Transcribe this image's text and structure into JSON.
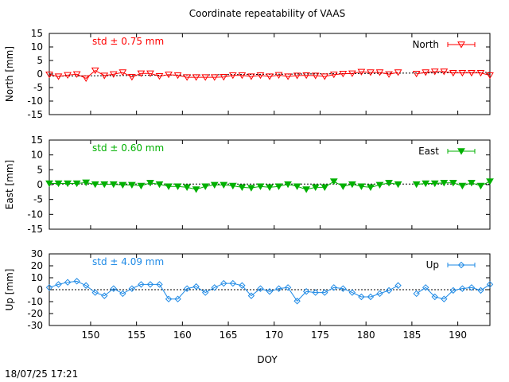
{
  "title": "Coordinate repeatability of VAAS",
  "x_label": "DOY",
  "timestamp": "18/07/25 17:21",
  "chart_data": [
    {
      "type": "line",
      "panel": "north",
      "title": "Coordinate repeatability of VAAS",
      "xlabel": "DOY",
      "ylabel": "North [mm]",
      "xlim": [
        145.5,
        193.5
      ],
      "ylim": [
        -15,
        15
      ],
      "x_ticks": [
        150,
        155,
        160,
        165,
        170,
        175,
        180,
        185,
        190
      ],
      "y_ticks": [
        15,
        10,
        5,
        0,
        -5,
        -10,
        -15
      ],
      "grid": false,
      "legend_position": "top-right",
      "std_text": "std ± 0.75 mm",
      "color": "#ff0000",
      "marker": "open-triangle-down",
      "series": [
        {
          "name": "North",
          "x": [
            145.5,
            146.5,
            147.5,
            148.5,
            149.5,
            150.5,
            151.5,
            152.5,
            153.5,
            154.5,
            155.5,
            156.5,
            157.5,
            158.5,
            159.5,
            160.5,
            161.5,
            162.5,
            163.5,
            164.5,
            165.5,
            166.5,
            167.5,
            168.5,
            169.5,
            170.5,
            171.5,
            172.5,
            173.5,
            174.5,
            175.5,
            176.5,
            177.5,
            178.5,
            179.5,
            180.5,
            181.5,
            182.5,
            183.5,
            184.5,
            185.5,
            186.5,
            187.5,
            188.5,
            189.5,
            190.5,
            191.5,
            192.5,
            193.5
          ],
          "y": [
            -0.2,
            -0.9,
            -0.4,
            -0.1,
            -1.6,
            1.3,
            -0.6,
            -0.1,
            0.6,
            -1.1,
            0.2,
            0.2,
            -0.8,
            -0.2,
            -0.5,
            -1.2,
            -1.2,
            -1.2,
            -1.2,
            -1.1,
            -0.5,
            -0.5,
            -0.9,
            -0.5,
            -0.9,
            -0.4,
            -0.9,
            -0.6,
            -0.5,
            -0.6,
            -0.9,
            -0.2,
            0.1,
            0.2,
            0.8,
            0.6,
            0.6,
            -0.1,
            0.6,
            null,
            0.1,
            0.6,
            0.9,
            0.9,
            0.4,
            0.4,
            0.4,
            0.4,
            -0.5
          ]
        }
      ],
      "fit_line": {
        "x": [
          145.5,
          193.5
        ],
        "y": [
          -0.8,
          0.6
        ]
      }
    },
    {
      "type": "line",
      "panel": "east",
      "xlabel": "DOY",
      "ylabel": "East [mm]",
      "xlim": [
        145.5,
        193.5
      ],
      "ylim": [
        -15,
        15
      ],
      "x_ticks": [
        150,
        155,
        160,
        165,
        170,
        175,
        180,
        185,
        190
      ],
      "y_ticks": [
        15,
        10,
        5,
        0,
        -5,
        -10,
        -15
      ],
      "grid": false,
      "legend_position": "top-right",
      "std_text": "std ± 0.60 mm",
      "color": "#00b000",
      "marker": "filled-triangle-down",
      "series": [
        {
          "name": "East",
          "x": [
            145.5,
            146.5,
            147.5,
            148.5,
            149.5,
            150.5,
            151.5,
            152.5,
            153.5,
            154.5,
            155.5,
            156.5,
            157.5,
            158.5,
            159.5,
            160.5,
            161.5,
            162.5,
            163.5,
            164.5,
            165.5,
            166.5,
            167.5,
            168.5,
            169.5,
            170.5,
            171.5,
            172.5,
            173.5,
            174.5,
            175.5,
            176.5,
            177.5,
            178.5,
            179.5,
            180.5,
            181.5,
            182.5,
            183.5,
            184.5,
            185.5,
            186.5,
            187.5,
            188.5,
            189.5,
            190.5,
            191.5,
            192.5,
            193.5
          ],
          "y": [
            0.4,
            0.4,
            0.4,
            0.4,
            0.7,
            0.1,
            0.1,
            0.1,
            -0.1,
            -0.1,
            -0.4,
            0.6,
            0.1,
            -0.6,
            -0.6,
            -0.9,
            -1.6,
            -0.6,
            -0.1,
            -0.1,
            -0.4,
            -0.9,
            -1.1,
            -0.6,
            -0.9,
            -0.6,
            0.1,
            -0.6,
            -1.6,
            -0.9,
            -0.9,
            1.1,
            -0.6,
            0.1,
            -0.6,
            -0.9,
            -0.1,
            0.6,
            0.1,
            null,
            0.1,
            0.4,
            0.4,
            0.6,
            0.6,
            -0.4,
            0.6,
            -0.4,
            1.1
          ]
        }
      ],
      "fit_line": {
        "x": [
          145.5,
          193.5
        ],
        "y": [
          0.2,
          0.2
        ]
      }
    },
    {
      "type": "line",
      "panel": "up",
      "xlabel": "DOY",
      "ylabel": "Up [mm]",
      "xlim": [
        145.5,
        193.5
      ],
      "ylim": [
        -30,
        30
      ],
      "x_ticks": [
        150,
        155,
        160,
        165,
        170,
        175,
        180,
        185,
        190
      ],
      "y_ticks": [
        30,
        20,
        10,
        0,
        -10,
        -20,
        -30
      ],
      "grid": false,
      "legend_position": "top-right",
      "std_text": "std ± 4.09 mm",
      "color": "#1e8ae6",
      "marker": "open-diamond",
      "series": [
        {
          "name": "Up",
          "x": [
            145.5,
            146.5,
            147.5,
            148.5,
            149.5,
            150.5,
            151.5,
            152.5,
            153.5,
            154.5,
            155.5,
            156.5,
            157.5,
            158.5,
            159.5,
            160.5,
            161.5,
            162.5,
            163.5,
            164.5,
            165.5,
            166.5,
            167.5,
            168.5,
            169.5,
            170.5,
            171.5,
            172.5,
            173.5,
            174.5,
            175.5,
            176.5,
            177.5,
            178.5,
            179.5,
            180.5,
            181.5,
            182.5,
            183.5,
            184.5,
            185.5,
            186.5,
            187.5,
            188.5,
            189.5,
            190.5,
            191.5,
            192.5,
            193.5
          ],
          "y": [
            1.8,
            4.4,
            6.2,
            7.1,
            3.5,
            -2.4,
            -5.1,
            0.9,
            -3.3,
            0.9,
            4.4,
            4.4,
            4.4,
            -7.8,
            -7.8,
            0.9,
            2.6,
            -2.4,
            1.8,
            5.3,
            5.3,
            3.5,
            -5.1,
            0.9,
            -1.5,
            0.9,
            1.8,
            -9.5,
            -1.5,
            -2.4,
            -2.4,
            1.8,
            0.9,
            -2.4,
            -6.0,
            -6.0,
            -3.3,
            -0.6,
            3.5,
            null,
            -3.3,
            1.8,
            -6.0,
            -7.8,
            -0.6,
            0.9,
            1.8,
            -0.6,
            4.4
          ]
        }
      ],
      "fit_line": {
        "x": [
          145.5,
          193.5
        ],
        "y": [
          0,
          0
        ]
      }
    }
  ]
}
